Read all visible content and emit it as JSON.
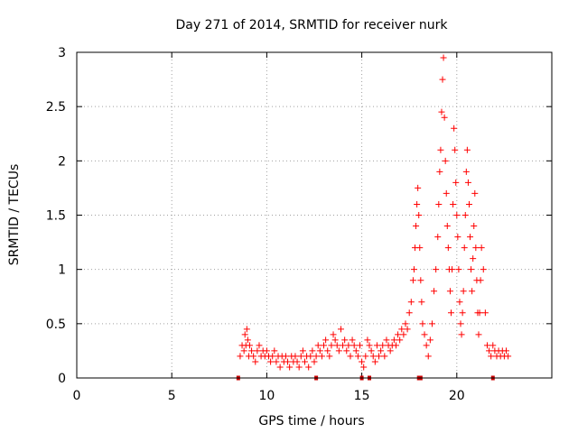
{
  "chart_data": {
    "type": "scatter",
    "title": "Day 271 of 2014, SRMTID for receiver nurk",
    "xlabel": "GPS time / hours",
    "ylabel": "SRMTID / TECUs",
    "xlim": [
      0,
      25
    ],
    "ylim": [
      0,
      3
    ],
    "xticks": [
      0,
      5,
      10,
      15,
      20
    ],
    "yticks": [
      0,
      0.5,
      1,
      1.5,
      2,
      2.5,
      3
    ],
    "xtick_labels": [
      "0",
      "5",
      "10",
      "15",
      "20"
    ],
    "ytick_labels": [
      "0",
      "0.5",
      "1",
      "1.5",
      "2",
      "2.5",
      "3"
    ],
    "grid": true,
    "marker": "+",
    "series_color": "#ff0000",
    "baseline_marker_color": "#cc0000",
    "series": [
      {
        "name": "SRMTID",
        "x": [
          8.6,
          8.7,
          8.8,
          8.85,
          8.9,
          8.95,
          9.0,
          9.05,
          9.1,
          9.2,
          9.3,
          9.4,
          9.5,
          9.6,
          9.7,
          9.8,
          9.9,
          10.0,
          10.1,
          10.2,
          10.3,
          10.4,
          10.5,
          10.6,
          10.7,
          10.8,
          10.9,
          11.0,
          11.1,
          11.2,
          11.3,
          11.4,
          11.5,
          11.6,
          11.7,
          11.8,
          11.9,
          12.0,
          12.1,
          12.2,
          12.3,
          12.4,
          12.5,
          12.6,
          12.7,
          12.8,
          12.9,
          13.0,
          13.1,
          13.2,
          13.3,
          13.4,
          13.5,
          13.6,
          13.7,
          13.8,
          13.9,
          14.0,
          14.1,
          14.2,
          14.3,
          14.4,
          14.5,
          14.6,
          14.7,
          14.8,
          14.9,
          15.0,
          15.1,
          15.2,
          15.3,
          15.4,
          15.5,
          15.6,
          15.7,
          15.8,
          15.9,
          16.0,
          16.1,
          16.2,
          16.3,
          16.4,
          16.5,
          16.6,
          16.7,
          16.8,
          16.9,
          17.0,
          17.1,
          17.2,
          17.3,
          17.4,
          17.5,
          17.6,
          17.7,
          17.75,
          17.8,
          17.85,
          17.9,
          17.95,
          18.0,
          18.05,
          18.1,
          18.15,
          18.2,
          18.3,
          18.4,
          18.5,
          18.6,
          18.7,
          18.8,
          18.9,
          19.0,
          19.05,
          19.1,
          19.15,
          19.2,
          19.25,
          19.3,
          19.35,
          19.4,
          19.45,
          19.5,
          19.55,
          19.6,
          19.65,
          19.7,
          19.75,
          19.8,
          19.85,
          19.9,
          19.95,
          20.0,
          20.05,
          20.1,
          20.15,
          20.2,
          20.25,
          20.3,
          20.35,
          20.4,
          20.45,
          20.5,
          20.55,
          20.6,
          20.65,
          20.7,
          20.75,
          20.8,
          20.85,
          20.9,
          20.95,
          21.0,
          21.05,
          21.1,
          21.15,
          21.2,
          21.25,
          21.3,
          21.4,
          21.5,
          21.6,
          21.7,
          21.8,
          21.9,
          22.0,
          22.1,
          22.2,
          22.3,
          22.4,
          22.5,
          22.6,
          22.7
        ],
        "y": [
          0.2,
          0.3,
          0.25,
          0.4,
          0.3,
          0.45,
          0.35,
          0.2,
          0.3,
          0.25,
          0.2,
          0.15,
          0.25,
          0.3,
          0.2,
          0.25,
          0.2,
          0.25,
          0.2,
          0.15,
          0.2,
          0.25,
          0.15,
          0.2,
          0.1,
          0.2,
          0.15,
          0.2,
          0.15,
          0.1,
          0.2,
          0.15,
          0.2,
          0.15,
          0.1,
          0.2,
          0.25,
          0.15,
          0.2,
          0.1,
          0.2,
          0.25,
          0.15,
          0.2,
          0.3,
          0.25,
          0.2,
          0.3,
          0.35,
          0.25,
          0.2,
          0.3,
          0.4,
          0.35,
          0.3,
          0.25,
          0.45,
          0.3,
          0.35,
          0.25,
          0.3,
          0.2,
          0.35,
          0.3,
          0.25,
          0.2,
          0.3,
          0.15,
          0.1,
          0.2,
          0.35,
          0.3,
          0.25,
          0.2,
          0.15,
          0.3,
          0.2,
          0.25,
          0.3,
          0.2,
          0.35,
          0.3,
          0.25,
          0.3,
          0.35,
          0.3,
          0.4,
          0.35,
          0.45,
          0.4,
          0.5,
          0.45,
          0.6,
          0.7,
          0.9,
          1.0,
          1.2,
          1.4,
          1.6,
          1.75,
          1.5,
          1.2,
          0.9,
          0.7,
          0.5,
          0.4,
          0.3,
          0.2,
          0.35,
          0.5,
          0.8,
          1.0,
          1.3,
          1.6,
          1.9,
          2.1,
          2.45,
          2.75,
          2.95,
          2.4,
          2.0,
          1.7,
          1.4,
          1.2,
          1.0,
          0.8,
          0.6,
          1.0,
          1.6,
          2.3,
          2.1,
          1.8,
          1.5,
          1.3,
          1.0,
          0.7,
          0.5,
          0.4,
          0.6,
          0.8,
          1.2,
          1.5,
          1.9,
          2.1,
          1.8,
          1.6,
          1.3,
          1.0,
          0.8,
          1.1,
          1.4,
          1.7,
          1.2,
          0.9,
          0.6,
          0.4,
          0.6,
          0.9,
          1.2,
          1.0,
          0.6,
          0.3,
          0.25,
          0.2,
          0.3,
          0.25,
          0.2,
          0.25,
          0.2,
          0.25,
          0.2,
          0.25,
          0.2
        ],
        "baseline_markers_x": [
          8.5,
          12.6,
          15.0,
          15.4,
          18.0,
          18.1,
          21.9
        ]
      }
    ]
  }
}
